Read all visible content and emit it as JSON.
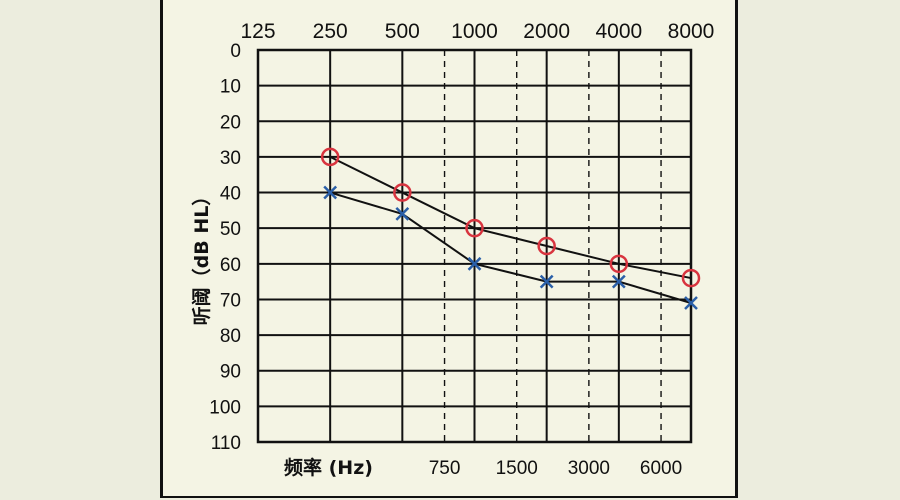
{
  "chart_data": {
    "type": "line",
    "title": "",
    "ylabel": "听阈（dB HL）",
    "xlabel": "频率 (Hz)",
    "x_top_ticks": [
      "125",
      "250",
      "500",
      "1000",
      "2000",
      "4000",
      "8000"
    ],
    "x_bottom_ticks": [
      "750",
      "1500",
      "3000",
      "6000"
    ],
    "y_ticks": [
      "0",
      "10",
      "20",
      "30",
      "40",
      "50",
      "60",
      "70",
      "80",
      "90",
      "100",
      "110"
    ],
    "ylim": [
      0,
      110
    ],
    "y_inverted": true,
    "x_scale": "log-octave",
    "grid": true,
    "colors": {
      "circle": "#d8343f",
      "cross": "#2a5fa8",
      "line": "#111111"
    },
    "series": [
      {
        "marker": "circle",
        "x": [
          250,
          500,
          1000,
          2000,
          4000,
          8000
        ],
        "values": [
          30,
          40,
          50,
          55,
          60,
          64
        ]
      },
      {
        "marker": "cross",
        "x": [
          250,
          500,
          1000,
          2000,
          4000,
          8000
        ],
        "values": [
          40,
          46,
          60,
          65,
          65,
          71
        ]
      }
    ]
  }
}
